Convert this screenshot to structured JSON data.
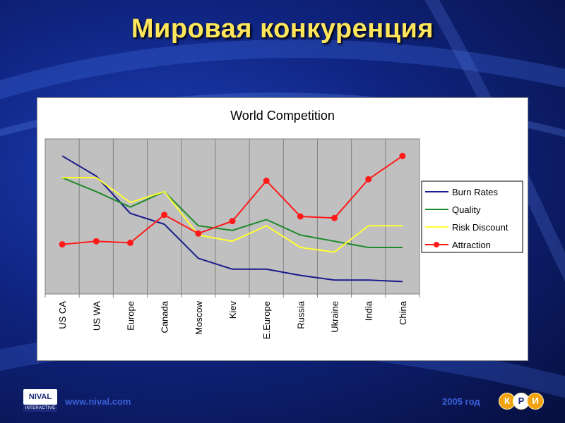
{
  "slide": {
    "title": "Мировая конкуренция"
  },
  "footer": {
    "logo_text": "NIVAL",
    "logo_subtext": "INTERACTIVE",
    "url": "www.nival.com",
    "year": "2005 год",
    "kri_letters": [
      "К",
      "Р",
      "И"
    ]
  },
  "chart_data": {
    "type": "line",
    "title": "World Competition",
    "xlabel": "",
    "ylabel": "",
    "categories": [
      "US CA",
      "US WA",
      "Europe",
      "Canada",
      "Moscow",
      "Kiev",
      "E.Europe",
      "Russia",
      "Ukraine",
      "India",
      "China"
    ],
    "ylim": [
      0,
      10
    ],
    "grid": true,
    "legend_position": "right",
    "series": [
      {
        "name": "Burn Rates",
        "color": "#1a1a8c",
        "markers": false,
        "values": [
          8.9,
          7.6,
          5.2,
          4.5,
          2.3,
          1.6,
          1.6,
          1.2,
          0.9,
          0.9,
          0.8
        ]
      },
      {
        "name": "Quality",
        "color": "#1f8a2a",
        "markers": false,
        "values": [
          7.5,
          6.6,
          5.6,
          6.6,
          4.4,
          4.1,
          4.8,
          3.8,
          3.4,
          3.0,
          3.0
        ]
      },
      {
        "name": "Risk Discount",
        "color": "#ffff33",
        "markers": false,
        "values": [
          7.5,
          7.5,
          5.9,
          6.6,
          3.8,
          3.4,
          4.4,
          3.0,
          2.7,
          4.4,
          4.4
        ]
      },
      {
        "name": "Attraction",
        "color": "#ff1a1a",
        "markers": true,
        "values": [
          3.2,
          3.4,
          3.3,
          5.1,
          3.9,
          4.7,
          7.3,
          5.0,
          4.9,
          7.4,
          8.9
        ]
      }
    ]
  }
}
